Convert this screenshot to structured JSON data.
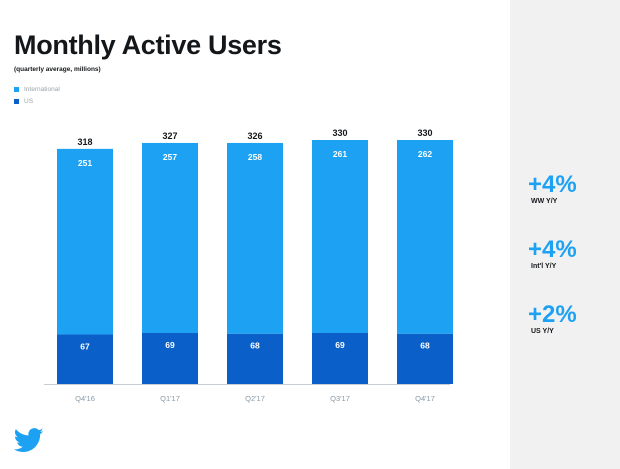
{
  "colors": {
    "international": "#1da1f2",
    "us": "#0b5fc9",
    "accent": "#1da1f2",
    "axis": "#c7cdd3",
    "sidebar": "#f1f1f2"
  },
  "chart_data": {
    "type": "bar",
    "stacked": true,
    "title": "Monthly Active Users",
    "subtitle": "(quarterly average, millions)",
    "categories": [
      "Q4'16",
      "Q1'17",
      "Q2'17",
      "Q3'17",
      "Q4'17"
    ],
    "series": [
      {
        "name": "US",
        "values": [
          67,
          69,
          68,
          69,
          68
        ]
      },
      {
        "name": "International",
        "values": [
          251,
          257,
          258,
          261,
          262
        ]
      }
    ],
    "totals": [
      318,
      327,
      326,
      330,
      330
    ],
    "legend": [
      "International",
      "US"
    ],
    "legend_position": "top-left",
    "xlabel": "",
    "ylabel": "",
    "ylim": [
      0,
      330
    ],
    "grid": false
  },
  "stats": [
    {
      "value": "+4%",
      "label": "WW Y/Y"
    },
    {
      "value": "+4%",
      "label": "Int'l Y/Y"
    },
    {
      "value": "+2%",
      "label": "US Y/Y"
    }
  ],
  "logo": {
    "icon": "twitter-bird-icon"
  }
}
